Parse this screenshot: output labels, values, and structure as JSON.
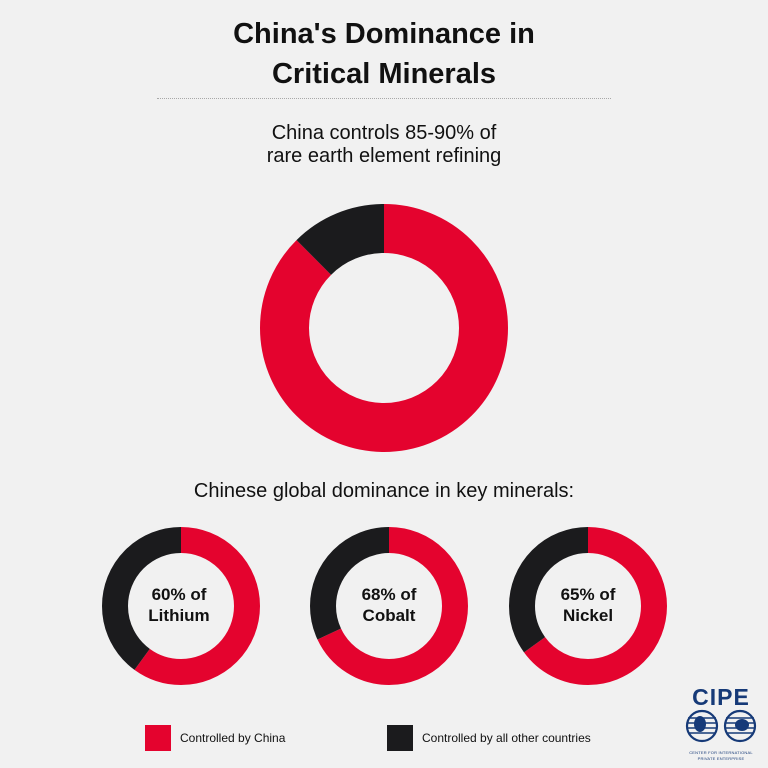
{
  "title_line1": "China's Dominance in",
  "title_line2": "Critical Minerals",
  "main_subtitle_line1": "China controls 85-90% of",
  "main_subtitle_line2": "rare earth element refining",
  "section_heading": "Chinese global dominance in key minerals:",
  "colors": {
    "china": "#e4032e",
    "other": "#1b1b1d",
    "background": "#f1f1f1",
    "logo": "#163a78"
  },
  "legend": {
    "china_label": "Controlled by China",
    "other_label": "Controlled by all other countries"
  },
  "logo": {
    "wordmark": "CIPE",
    "subtitle_line1": "CENTER FOR INTERNATIONAL",
    "subtitle_line2": "PRIVATE ENTERPRISE"
  },
  "chart_data": [
    {
      "type": "pie",
      "title": "China controls 85-90% of rare earth element refining",
      "categories": [
        "Controlled by China",
        "Controlled by all other countries"
      ],
      "values": [
        87.5,
        12.5
      ]
    },
    {
      "type": "pie",
      "title": "60% of Lithium",
      "label_line1": "60% of",
      "label_line2": "Lithium",
      "categories": [
        "Controlled by China",
        "Controlled by all other countries"
      ],
      "values": [
        60,
        40
      ]
    },
    {
      "type": "pie",
      "title": "68% of Cobalt",
      "label_line1": "68% of",
      "label_line2": "Cobalt",
      "categories": [
        "Controlled by China",
        "Controlled by all other countries"
      ],
      "values": [
        68,
        32
      ]
    },
    {
      "type": "pie",
      "title": "65% of Nickel",
      "label_line1": "65% of",
      "label_line2": "Nickel",
      "categories": [
        "Controlled by China",
        "Controlled by all other countries"
      ],
      "values": [
        65,
        35
      ]
    }
  ]
}
